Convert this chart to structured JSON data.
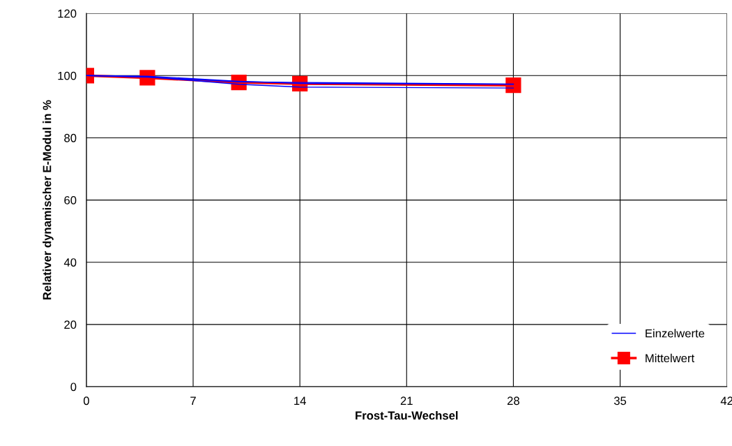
{
  "chart_data": {
    "type": "line",
    "xlabel": "Frost-Tau-Wechsel",
    "ylabel": "Relativer dynamischer E-Modul in %",
    "x": [
      0,
      4,
      10,
      14,
      28
    ],
    "series": [
      {
        "name": "Einzelwerte",
        "color": "#0000ff",
        "values": [
          100,
          99.8,
          98.2,
          97.5,
          97.2
        ],
        "marker": "none"
      },
      {
        "color": "#0000ff",
        "values": [
          100,
          99.6,
          97.2,
          96.3,
          96.0
        ],
        "marker": "none"
      },
      {
        "color": "#0000ff",
        "values": [
          100,
          99.5,
          98.0,
          97.8,
          97.3
        ],
        "marker": "none"
      },
      {
        "name": "Mittelwert",
        "color": "#ff0000",
        "values": [
          100,
          99.3,
          97.8,
          97.4,
          96.9
        ],
        "marker": "square"
      }
    ],
    "xlim": [
      0,
      42
    ],
    "xticks": [
      0,
      7,
      14,
      21,
      28,
      35,
      42
    ],
    "ylim": [
      0,
      120
    ],
    "yticks": [
      0,
      20,
      40,
      60,
      80,
      100,
      120
    ],
    "grid": true,
    "legend": "bottom right"
  }
}
